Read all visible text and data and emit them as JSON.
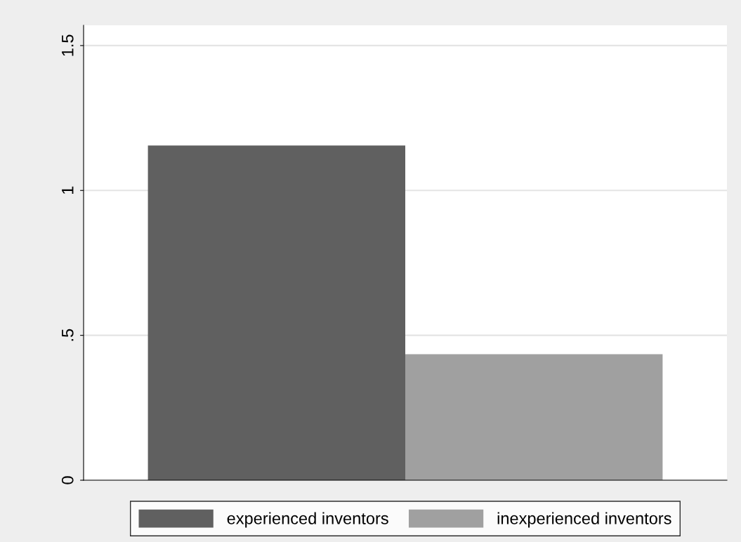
{
  "chart_data": {
    "type": "bar",
    "categories": [
      null
    ],
    "series": [
      {
        "name": "experienced inventors",
        "color": "#606060",
        "values": [
          1.155
        ]
      },
      {
        "name": "inexperienced inventors",
        "color": "#a0a0a0",
        "values": [
          0.435
        ]
      }
    ],
    "ylim": [
      0,
      1.57
    ],
    "yticks": [
      0,
      {
        "value": 0.5,
        "label": ".5"
      },
      1,
      1.5
    ],
    "grid": "y",
    "legend": "bottom"
  }
}
